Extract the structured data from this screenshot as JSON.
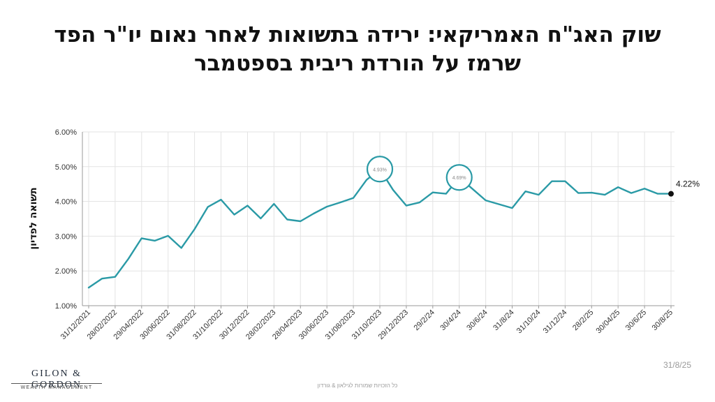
{
  "title": {
    "line1": "שוק האג\"ח האמריקאי: ירידה בתשואות לאחר נאום יו\"ר הפד",
    "line2": "שרמז על הורדת ריבית בספטמבר"
  },
  "date_stamp": "31/8/25",
  "footer_note": "כל הזכויות שמורות לגילאון & גורדון",
  "logo": {
    "main": "GILON & GORDON",
    "sub": "WEALTH MANAGEMENT"
  },
  "colors": {
    "line": "#2a9aa6",
    "grid": "#e3e3e3",
    "axis": "#999999",
    "text": "#111111",
    "circle": "#2a9aa6"
  },
  "chart_data": {
    "type": "line",
    "ylabel": "תשואה לפדיון",
    "ylim": [
      1.0,
      6.0
    ],
    "y_ticks": [
      "1.00%",
      "2.00%",
      "3.00%",
      "4.00%",
      "5.00%",
      "6.00%"
    ],
    "x_ticks": [
      "31/12/2021",
      "28/02/2022",
      "29/04/2022",
      "30/06/2022",
      "31/08/2022",
      "31/10/2022",
      "30/12/2022",
      "28/02/2023",
      "28/04/2023",
      "30/06/2023",
      "31/08/2023",
      "31/10/2023",
      "29/12/2023",
      "29/2/24",
      "30/4/24",
      "30/6/24",
      "31/8/24",
      "31/10/24",
      "31/12/24",
      "28/2/25",
      "30/04/25",
      "30/6/25",
      "30/8/25"
    ],
    "grid": true,
    "series": [
      {
        "values": [
          1.52,
          1.78,
          1.83,
          2.35,
          2.94,
          2.87,
          3.01,
          2.66,
          3.2,
          3.84,
          4.05,
          3.62,
          3.88,
          3.51,
          3.93,
          3.48,
          3.43,
          3.65,
          3.85,
          3.97,
          4.1,
          4.62,
          4.93,
          4.33,
          3.88,
          3.97,
          4.26,
          4.22,
          4.69,
          4.36,
          4.03,
          3.92,
          3.81,
          4.29,
          4.19,
          4.58,
          4.58,
          4.24,
          4.25,
          4.19,
          4.41,
          4.24,
          4.37,
          4.22,
          4.22
        ]
      }
    ],
    "annotations": [
      {
        "index": 22,
        "label": "4.93%",
        "style": "circle"
      },
      {
        "index": 28,
        "label": "4.69%",
        "style": "circle"
      },
      {
        "index": 44,
        "label": "4.22%",
        "style": "end-marker"
      }
    ]
  }
}
